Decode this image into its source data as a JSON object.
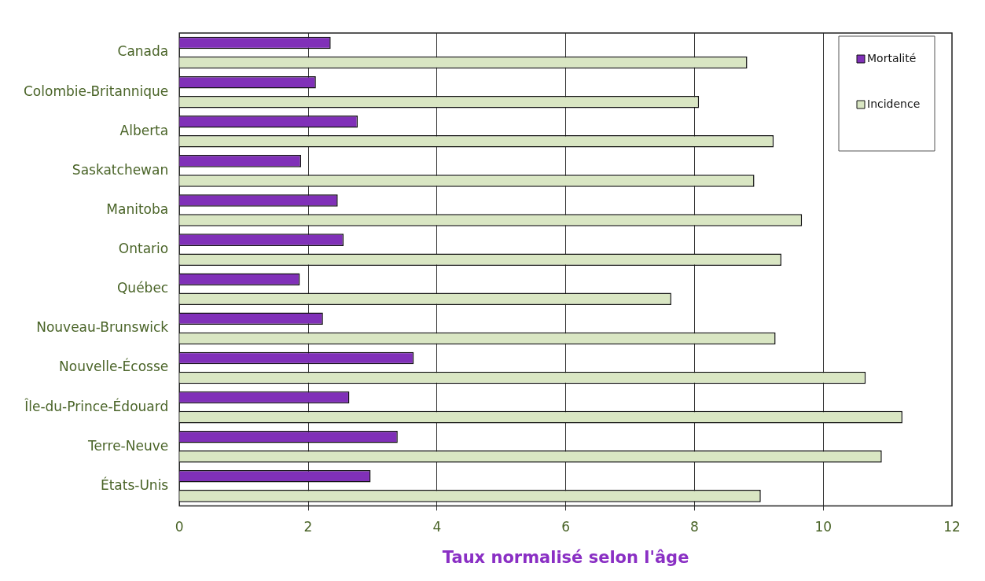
{
  "chart_data": {
    "type": "bar",
    "orientation": "horizontal",
    "xlabel": "Taux normalisé selon l'âge",
    "categories": [
      "Canada",
      "Colombie-Britannique",
      "Alberta",
      "Saskatchewan",
      "Manitoba",
      "Ontario",
      "Québec",
      "Nouveau-Brunswick",
      "Nouvelle-Écosse",
      "Île-du-Prince-Édouard",
      "Terre-Neuve",
      "États-Unis"
    ],
    "series": [
      {
        "name": "Mortalité",
        "color": "#8030b8",
        "values": [
          2.35,
          2.12,
          2.77,
          1.89,
          2.46,
          2.55,
          1.87,
          2.23,
          3.64,
          2.64,
          3.39,
          2.97
        ]
      },
      {
        "name": "Incidence",
        "color": "#d9e6c3",
        "values": [
          8.82,
          8.07,
          9.23,
          8.93,
          9.67,
          9.35,
          7.64,
          9.26,
          10.66,
          11.23,
          10.91,
          9.03
        ]
      }
    ],
    "xlim": [
      0,
      12
    ],
    "xticks": [
      0,
      2,
      4,
      6,
      8,
      10,
      12
    ],
    "grid": "x",
    "legend": "top right"
  }
}
